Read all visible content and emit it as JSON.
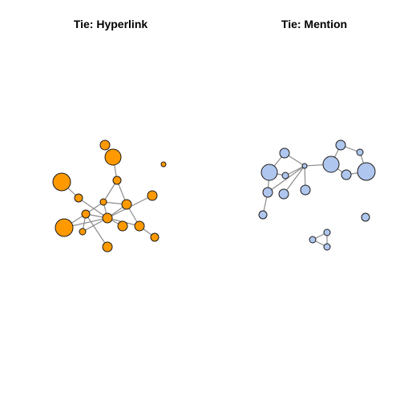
{
  "panels": [
    {
      "id": "hyperlink",
      "title": "Tie: Hyperlink",
      "node_color": "#FF9900",
      "nodes": [
        {
          "id": "h1",
          "size": 6
        },
        {
          "id": "h2",
          "size": 10
        },
        {
          "id": "h3",
          "size": 3
        },
        {
          "id": "h4",
          "size": 11
        },
        {
          "id": "h5",
          "size": 5
        },
        {
          "id": "h6",
          "size": 5
        },
        {
          "id": "h7",
          "size": 4
        },
        {
          "id": "h8",
          "size": 6
        },
        {
          "id": "h9",
          "size": 5
        },
        {
          "id": "h10",
          "size": 6
        },
        {
          "id": "h11",
          "size": 11
        },
        {
          "id": "h12",
          "size": 4
        },
        {
          "id": "h13",
          "size": 6
        },
        {
          "id": "h14",
          "size": 6
        },
        {
          "id": "h15",
          "size": 6
        },
        {
          "id": "h16",
          "size": 5
        },
        {
          "id": "h17",
          "size": 6
        }
      ],
      "edges": [
        [
          "h2",
          "h5"
        ],
        [
          "h5",
          "h7"
        ],
        [
          "h5",
          "h8"
        ],
        [
          "h4",
          "h6"
        ],
        [
          "h6",
          "h10"
        ],
        [
          "h7",
          "h8"
        ],
        [
          "h7",
          "h9"
        ],
        [
          "h7",
          "h10"
        ],
        [
          "h8",
          "h10"
        ],
        [
          "h9",
          "h10"
        ],
        [
          "h9",
          "h11"
        ],
        [
          "h9",
          "h12"
        ],
        [
          "h9",
          "h15"
        ],
        [
          "h10",
          "h12"
        ],
        [
          "h10",
          "h13"
        ],
        [
          "h10",
          "h17"
        ],
        [
          "h10",
          "h14"
        ],
        [
          "h8",
          "h14"
        ],
        [
          "h14",
          "h16"
        ],
        [
          "h10",
          "h11"
        ]
      ]
    },
    {
      "id": "mention",
      "title": "Tie: Mention",
      "node_color": "#AFC6EE",
      "nodes": [
        {
          "id": "m1",
          "size": 6
        },
        {
          "id": "m2",
          "size": 10
        },
        {
          "id": "m3",
          "size": 4
        },
        {
          "id": "m4",
          "size": 3
        },
        {
          "id": "m5",
          "size": 6
        },
        {
          "id": "m6",
          "size": 6
        },
        {
          "id": "m7",
          "size": 6
        },
        {
          "id": "m8",
          "size": 5
        },
        {
          "id": "m9",
          "size": 10
        },
        {
          "id": "m10",
          "size": 6
        },
        {
          "id": "m11",
          "size": 6
        },
        {
          "id": "m12",
          "size": 4
        },
        {
          "id": "m13",
          "size": 11
        },
        {
          "id": "m14",
          "size": 5
        },
        {
          "id": "m15",
          "size": 4
        },
        {
          "id": "m16",
          "size": 4
        },
        {
          "id": "m17",
          "size": 4
        }
      ],
      "edges": [
        [
          "m1",
          "m2"
        ],
        [
          "m1",
          "m4"
        ],
        [
          "m2",
          "m3"
        ],
        [
          "m2",
          "m5"
        ],
        [
          "m3",
          "m4"
        ],
        [
          "m4",
          "m5"
        ],
        [
          "m4",
          "m6"
        ],
        [
          "m4",
          "m7"
        ],
        [
          "m5",
          "m8"
        ],
        [
          "m4",
          "m9"
        ],
        [
          "m9",
          "m10"
        ],
        [
          "m10",
          "m12"
        ],
        [
          "m12",
          "m13"
        ],
        [
          "m9",
          "m11"
        ],
        [
          "m11",
          "m13"
        ],
        [
          "m15",
          "m16"
        ],
        [
          "m15",
          "m17"
        ],
        [
          "m16",
          "m17"
        ]
      ]
    }
  ]
}
